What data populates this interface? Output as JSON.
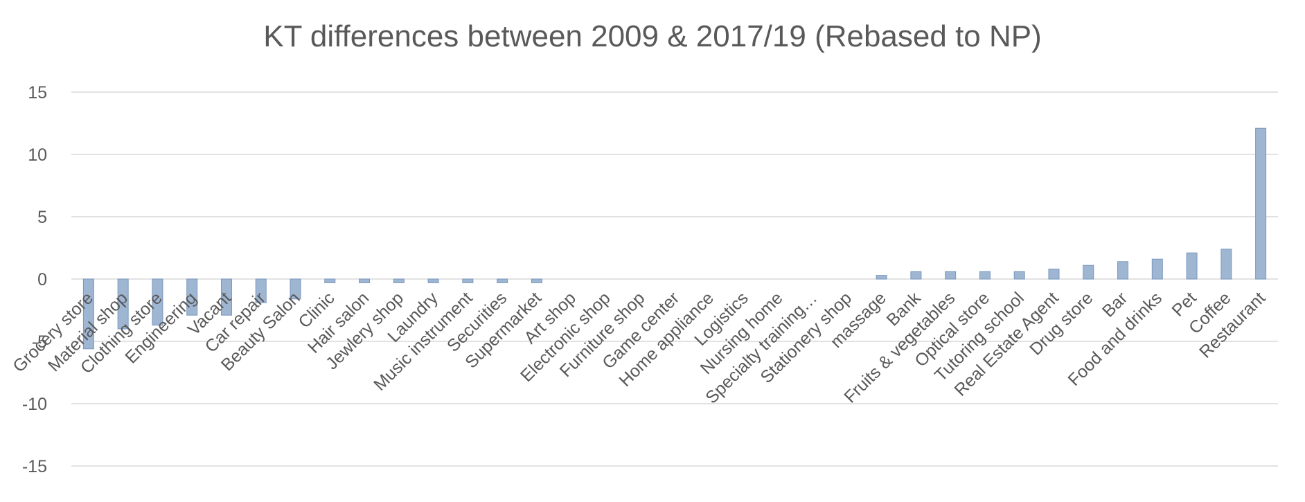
{
  "chart_data": {
    "type": "bar",
    "title": "KT differences between 2009 & 2017/19 (Rebased to NP)",
    "xlabel": "",
    "ylabel": "",
    "ylim": [
      -15,
      15
    ],
    "yticks": [
      15,
      10,
      5,
      0,
      -5,
      -10,
      -15
    ],
    "grid": true,
    "legend": "none",
    "bar_color": "#9fb6d3",
    "bar_edge_color": "#7a97bd",
    "grid_color": "#d9d9d9",
    "categories": [
      "Grocery store",
      "Material shop",
      "Clothing store",
      "Engineering",
      "Vacant",
      "Car repair",
      "Beauty Salon",
      "Clinic",
      "Hair salon",
      "Jewlery shop",
      "Laundry",
      "Music instrument",
      "Securities",
      "Supermarket",
      "Art shop",
      "Electronic shop",
      "Furniture shop",
      "Game center",
      "Home appliance",
      "Logistics",
      "Nursing home",
      "Specialty training…",
      "Stationery shop",
      "massage",
      "Bank",
      "Fruits & vegetables",
      "Optical store",
      "Tutoring school",
      "Real Estate Agent",
      "Drug store",
      "Bar",
      "Food and drinks",
      "Pet",
      "Coffee",
      "Restaurant"
    ],
    "values": [
      -5.6,
      -4.0,
      -3.7,
      -2.9,
      -2.9,
      -1.9,
      -1.6,
      -0.3,
      -0.3,
      -0.3,
      -0.3,
      -0.3,
      -0.3,
      -0.3,
      0,
      0,
      0,
      0,
      0,
      0,
      0,
      0,
      0,
      0.3,
      0.6,
      0.6,
      0.6,
      0.6,
      0.8,
      1.1,
      1.4,
      1.6,
      2.1,
      2.4,
      12.1
    ]
  }
}
